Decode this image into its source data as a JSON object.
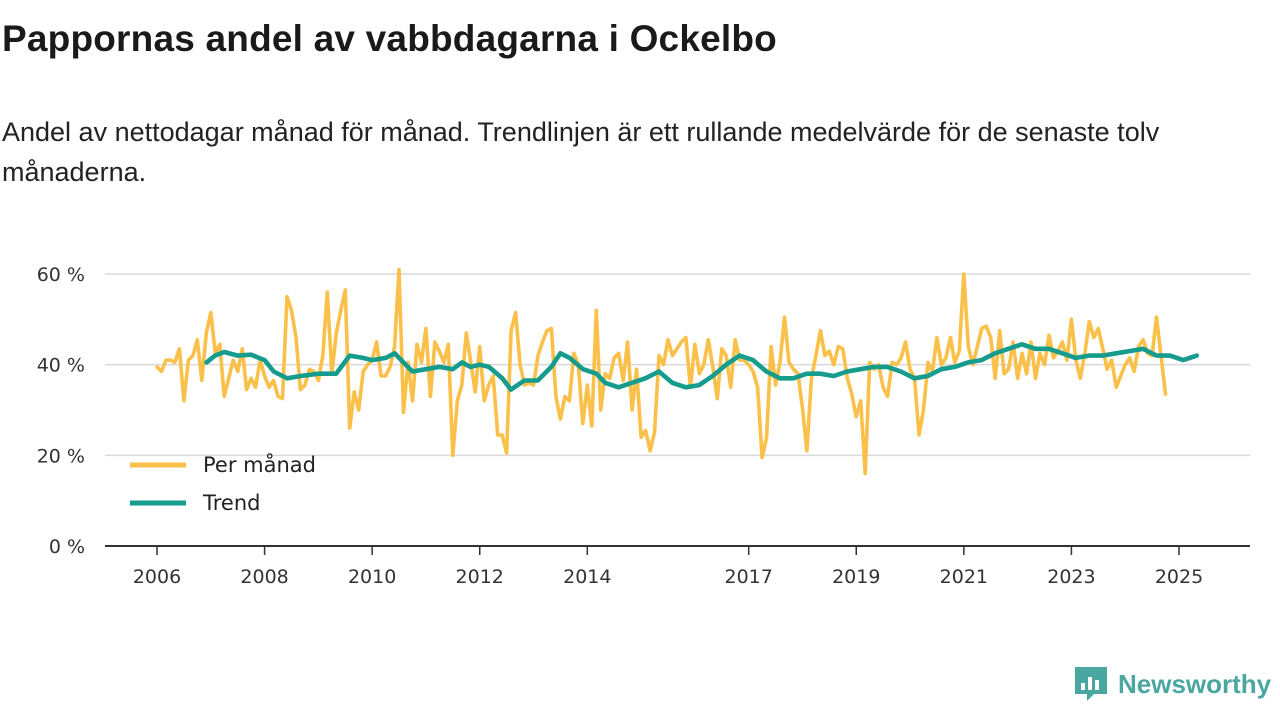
{
  "title": "Pappornas andel av vabbdagarna i Ockelbo",
  "subtitle": "Andel av nettodagar månad för månad. Trendlinjen är ett rullande medelvärde för de senaste tolv månaderna.",
  "brand": {
    "name": "Newsworthy",
    "icon": "bar-chart-logo-icon",
    "color": "#4aa6a0"
  },
  "colors": {
    "monthly": "#fbc04a",
    "trend": "#169c8c",
    "grid": "#d9d9d9",
    "axis": "#333333"
  },
  "chart_data": {
    "type": "line",
    "title": "Pappornas andel av vabbdagarna i Ockelbo",
    "xlabel": "",
    "ylabel": "",
    "x_range": [
      2005.6,
      2025.9
    ],
    "ylim": [
      0,
      60
    ],
    "y_ticks": [
      0,
      20,
      40,
      60
    ],
    "y_tick_labels": [
      "0 %",
      "20 %",
      "40 %",
      "60 %"
    ],
    "x_ticks": [
      2006,
      2008,
      2010,
      2012,
      2014,
      2017,
      2019,
      2021,
      2023,
      2025
    ],
    "x_tick_labels": [
      "2006",
      "2008",
      "2010",
      "2012",
      "2014",
      "2017",
      "2019",
      "2021",
      "2023",
      "2025"
    ],
    "grid": true,
    "legend": [
      {
        "name": "Per månad",
        "key": "monthly"
      },
      {
        "name": "Trend",
        "key": "trend"
      }
    ],
    "legend_position": "bottom-left",
    "series": [
      {
        "name": "Per månad",
        "key": "monthly",
        "start": 2006.0,
        "step": 0.08333,
        "values": [
          39.5,
          38.5,
          41.0,
          41.0,
          40.5,
          43.5,
          32.0,
          41.0,
          42.0,
          45.5,
          36.5,
          47.0,
          51.5,
          42.5,
          44.5,
          33.0,
          37.0,
          41.0,
          38.5,
          43.5,
          34.5,
          37.0,
          35.0,
          41.0,
          37.5,
          35.0,
          36.5,
          33.0,
          32.5,
          55.0,
          52.0,
          46.0,
          34.5,
          35.5,
          39.0,
          38.5,
          36.5,
          42.0,
          56.0,
          38.0,
          47.0,
          52.0,
          56.5,
          26.0,
          34.0,
          30.0,
          38.5,
          40.0,
          41.0,
          45.0,
          37.5,
          37.5,
          39.5,
          44.0,
          61.0,
          29.5,
          40.5,
          32.0,
          44.5,
          40.5,
          48.0,
          33.0,
          45.0,
          43.0,
          40.5,
          44.5,
          20.0,
          32.0,
          35.5,
          47.0,
          40.5,
          34.0,
          44.0,
          32.0,
          35.5,
          37.5,
          24.5,
          24.5,
          20.5,
          47.5,
          51.5,
          40.0,
          35.5,
          36.0,
          35.5,
          42.0,
          45.0,
          47.5,
          48.0,
          33.0,
          28.0,
          33.0,
          32.0,
          42.5,
          40.0,
          27.0,
          35.5,
          26.5,
          52.0,
          30.0,
          38.0,
          37.0,
          41.5,
          42.5,
          36.5,
          45.0,
          30.0,
          39.0,
          24.0,
          25.5,
          21.0,
          25.0,
          42.0,
          40.0,
          45.5,
          42.0,
          43.5,
          45.0,
          46.0,
          35.0,
          44.5,
          38.0,
          40.0,
          45.5,
          39.5,
          32.5,
          43.5,
          42.0,
          35.0,
          45.5,
          41.0,
          41.0,
          40.0,
          38.5,
          35.0,
          19.5,
          24.0,
          44.0,
          35.5,
          40.5,
          50.5,
          40.5,
          39.0,
          38.0,
          30.5,
          21.0,
          37.0,
          42.0,
          47.5,
          42.0,
          43.0,
          40.0,
          44.0,
          43.5,
          37.0,
          33.5,
          28.5,
          32.0,
          16.0,
          40.5,
          39.0,
          40.0,
          35.0,
          33.0,
          40.5,
          40.0,
          41.5,
          45.0,
          39.0,
          37.0,
          24.5,
          30.0,
          40.5,
          38.5,
          46.0,
          40.0,
          41.5,
          46.0,
          40.5,
          43.0,
          60.0,
          44.0,
          40.0,
          44.0,
          48.0,
          48.5,
          46.0,
          37.0,
          47.5,
          38.0,
          39.0,
          45.0,
          37.0,
          42.5,
          38.0,
          45.0,
          37.0,
          42.5,
          40.0,
          46.5,
          41.5,
          43.0,
          45.0,
          41.0,
          50.0,
          41.0,
          37.0,
          42.5,
          49.5,
          46.0,
          48.0,
          43.5,
          39.0,
          41.0,
          35.0,
          37.5,
          40.0,
          41.5,
          38.5,
          44.0,
          45.5,
          42.5,
          42.0,
          50.5,
          42.0,
          33.5
        ]
      },
      {
        "name": "Trend",
        "key": "trend",
        "points": [
          [
            2006.92,
            40.5
          ],
          [
            2007.08,
            42.0
          ],
          [
            2007.25,
            42.8
          ],
          [
            2007.5,
            42.0
          ],
          [
            2007.75,
            42.2
          ],
          [
            2008.0,
            41.0
          ],
          [
            2008.17,
            38.5
          ],
          [
            2008.42,
            37.0
          ],
          [
            2008.67,
            37.5
          ],
          [
            2009.0,
            38.0
          ],
          [
            2009.33,
            38.0
          ],
          [
            2009.58,
            42.0
          ],
          [
            2009.83,
            41.5
          ],
          [
            2010.0,
            41.0
          ],
          [
            2010.25,
            41.5
          ],
          [
            2010.42,
            42.5
          ],
          [
            2010.58,
            40.5
          ],
          [
            2010.75,
            38.5
          ],
          [
            2011.0,
            39.0
          ],
          [
            2011.25,
            39.5
          ],
          [
            2011.5,
            39.0
          ],
          [
            2011.67,
            40.5
          ],
          [
            2011.83,
            39.5
          ],
          [
            2012.0,
            40.0
          ],
          [
            2012.17,
            39.5
          ],
          [
            2012.42,
            37.0
          ],
          [
            2012.58,
            34.5
          ],
          [
            2012.83,
            36.5
          ],
          [
            2013.08,
            36.5
          ],
          [
            2013.33,
            39.5
          ],
          [
            2013.5,
            42.5
          ],
          [
            2013.67,
            41.5
          ],
          [
            2013.92,
            39.0
          ],
          [
            2014.17,
            38.0
          ],
          [
            2014.33,
            36.0
          ],
          [
            2014.58,
            35.0
          ],
          [
            2014.83,
            36.0
          ],
          [
            2015.08,
            37.0
          ],
          [
            2015.33,
            38.5
          ],
          [
            2015.58,
            36.0
          ],
          [
            2015.83,
            35.0
          ],
          [
            2016.08,
            35.5
          ],
          [
            2016.33,
            37.5
          ],
          [
            2016.58,
            40.0
          ],
          [
            2016.83,
            42.0
          ],
          [
            2017.08,
            41.0
          ],
          [
            2017.33,
            38.5
          ],
          [
            2017.58,
            37.0
          ],
          [
            2017.83,
            37.0
          ],
          [
            2018.08,
            38.0
          ],
          [
            2018.33,
            38.0
          ],
          [
            2018.58,
            37.5
          ],
          [
            2018.83,
            38.5
          ],
          [
            2019.08,
            39.0
          ],
          [
            2019.33,
            39.5
          ],
          [
            2019.58,
            39.5
          ],
          [
            2019.83,
            38.5
          ],
          [
            2020.08,
            37.0
          ],
          [
            2020.33,
            37.5
          ],
          [
            2020.58,
            39.0
          ],
          [
            2020.83,
            39.5
          ],
          [
            2021.08,
            40.5
          ],
          [
            2021.33,
            41.0
          ],
          [
            2021.58,
            42.5
          ],
          [
            2021.83,
            43.5
          ],
          [
            2022.08,
            44.5
          ],
          [
            2022.33,
            43.5
          ],
          [
            2022.58,
            43.5
          ],
          [
            2022.83,
            42.5
          ],
          [
            2023.08,
            41.5
          ],
          [
            2023.33,
            42.0
          ],
          [
            2023.58,
            42.0
          ],
          [
            2023.83,
            42.5
          ],
          [
            2024.08,
            43.0
          ],
          [
            2024.33,
            43.5
          ],
          [
            2024.58,
            42.0
          ],
          [
            2024.83,
            42.0
          ],
          [
            2025.08,
            41.0
          ],
          [
            2025.33,
            42.0
          ]
        ]
      }
    ]
  }
}
